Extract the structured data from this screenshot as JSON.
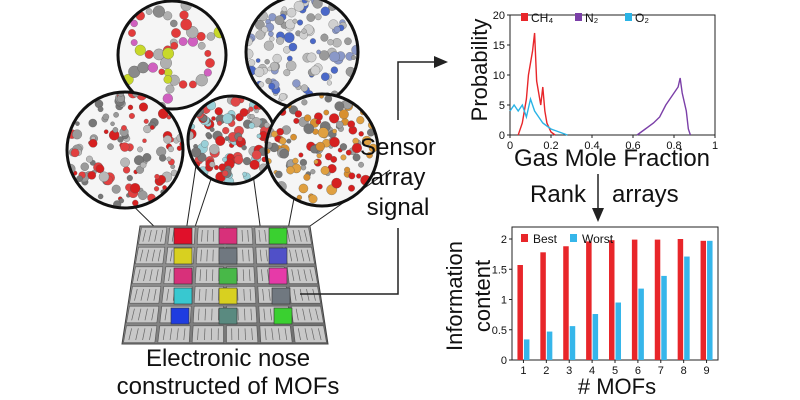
{
  "left_caption": {
    "line1": "Electronic  nose",
    "line2": "constructed of MOFs"
  },
  "signal_label": {
    "line1": "Sensor",
    "line2": "array",
    "line3": "signal"
  },
  "rank_label": {
    "left": "Rank",
    "right": "arrays"
  },
  "colors": {
    "ch4": "#e8262a",
    "n2": "#7b3fa8",
    "o2": "#2ab4e6",
    "best": "#e8262a",
    "worst": "#36b6ea",
    "chip": "#8a8a8a",
    "circle_fill": "#f5f5f5"
  },
  "sensor_colors": [
    "#e0102a",
    "#4a48c8",
    "#d8d020",
    "#e63aa8",
    "#2ac6c6",
    "#40a040",
    "#d8307a",
    "#48b848",
    "#1f3ce0",
    "#c88030",
    "#38c8d0",
    "#e07018",
    "#3ad030",
    "#d830c8"
  ],
  "chart_data": [
    {
      "type": "line",
      "xlabel": "Gas Mole Fraction",
      "ylabel": "Probability",
      "xlim": [
        0,
        1
      ],
      "ylim": [
        0,
        20
      ],
      "xticks": [
        "0",
        "0.2",
        "0.4",
        "0.6",
        "0.8",
        "1"
      ],
      "yticks": [
        "0",
        "5",
        "10",
        "15",
        "20"
      ],
      "legend": [
        "CH₄",
        "N₂",
        "O₂"
      ],
      "series": [
        {
          "name": "CH₄",
          "x": [
            0.04,
            0.06,
            0.08,
            0.09,
            0.1,
            0.11,
            0.12,
            0.13,
            0.14,
            0.15,
            0.16,
            0.17,
            0.18,
            0.2,
            0.22
          ],
          "y": [
            0,
            2,
            6,
            10,
            12,
            14,
            17,
            9,
            7,
            5,
            8,
            4,
            2,
            0.5,
            0
          ]
        },
        {
          "name": "N₂",
          "x": [
            0.62,
            0.66,
            0.7,
            0.73,
            0.76,
            0.78,
            0.8,
            0.82,
            0.83,
            0.84,
            0.86,
            0.87,
            0.88
          ],
          "y": [
            0,
            1,
            2,
            3,
            5,
            6,
            7,
            8,
            9.5,
            7,
            4,
            1,
            0
          ]
        },
        {
          "name": "O₂",
          "x": [
            0.0,
            0.02,
            0.04,
            0.06,
            0.08,
            0.1,
            0.12,
            0.14,
            0.16,
            0.18,
            0.2,
            0.24,
            0.28
          ],
          "y": [
            4,
            5,
            4,
            5,
            3,
            6,
            4,
            3,
            2,
            1.5,
            1,
            0.5,
            0
          ]
        }
      ]
    },
    {
      "type": "bar",
      "xlabel": "# MOFs",
      "ylabel": "Information content",
      "ylim": [
        0,
        2
      ],
      "yticks": [
        "0",
        "0.5",
        "1",
        "1.5",
        "2"
      ],
      "categories": [
        "1",
        "2",
        "3",
        "4",
        "5",
        "6",
        "7",
        "8",
        "9"
      ],
      "legend": [
        "Best",
        "Worst"
      ],
      "series": [
        {
          "name": "Best",
          "values": [
            1.57,
            1.78,
            1.88,
            1.96,
            1.98,
            1.99,
            1.99,
            2.0,
            1.97
          ]
        },
        {
          "name": "Worst",
          "values": [
            0.34,
            0.47,
            0.56,
            0.76,
            0.95,
            1.18,
            1.39,
            1.71,
            1.97
          ]
        }
      ]
    }
  ]
}
